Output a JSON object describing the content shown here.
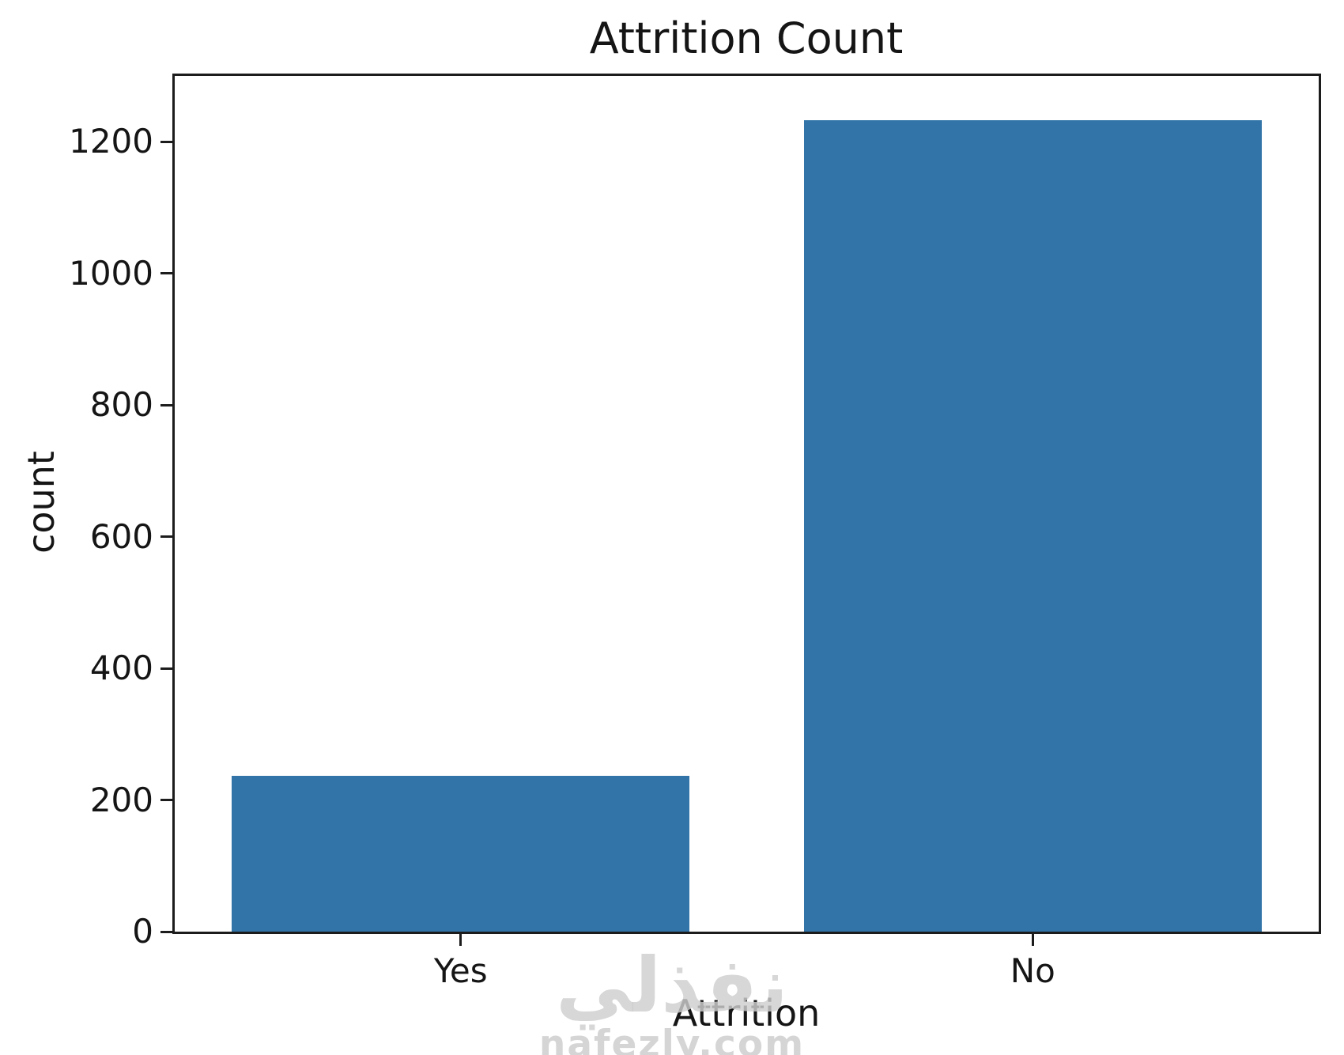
{
  "chart_data": {
    "type": "bar",
    "title": "Attrition Count",
    "xlabel": "Attrition",
    "ylabel": "count",
    "categories": [
      "Yes",
      "No"
    ],
    "values": [
      237,
      1233
    ],
    "ylim": [
      0,
      1300
    ],
    "yticks": [
      0,
      200,
      400,
      600,
      800,
      1000,
      1200
    ],
    "bar_color": "#3274a8",
    "spine_color": "#1c1c1c",
    "grid": false,
    "legend_position": "none"
  },
  "watermark": {
    "logo_text": "نفذلي",
    "site_text": "nafezly.com",
    "color": "#cecece"
  }
}
